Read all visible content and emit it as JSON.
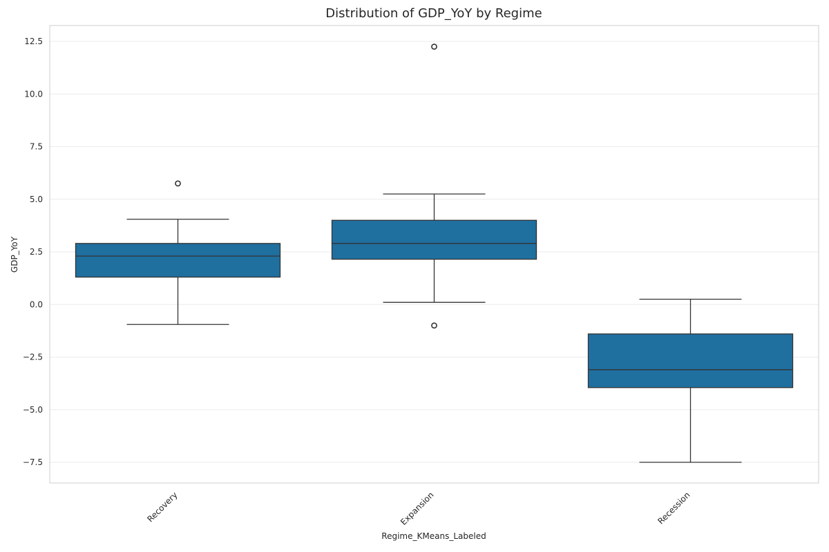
{
  "chart_data": {
    "type": "box",
    "title": "Distribution of GDP_YoY by Regime",
    "xlabel": "Regime_KMeans_Labeled",
    "ylabel": "GDP_YoY",
    "categories": [
      "Recovery",
      "Expansion",
      "Recession"
    ],
    "ylim": [
      -8.5,
      13.2
    ],
    "yticks": [
      -7.5,
      -5.0,
      -2.5,
      0.0,
      2.5,
      5.0,
      7.5,
      10.0,
      12.5
    ],
    "ytick_labels": [
      "−7.5",
      "−5.0",
      "−2.5",
      "0.0",
      "2.5",
      "5.0",
      "7.5",
      "10.0",
      "12.5"
    ],
    "grid": true,
    "box_color": "#1f6f9f",
    "edge_color": "#333333",
    "boxes": [
      {
        "category": "Recovery",
        "whisker_low": -0.95,
        "q1": 1.3,
        "median": 2.3,
        "q3": 2.9,
        "whisker_high": 4.05,
        "outliers": [
          5.75
        ]
      },
      {
        "category": "Expansion",
        "whisker_low": 0.1,
        "q1": 2.15,
        "median": 2.9,
        "q3": 4.0,
        "whisker_high": 5.25,
        "outliers": [
          12.25,
          -1.0
        ]
      },
      {
        "category": "Recession",
        "whisker_low": -7.5,
        "q1": -3.95,
        "median": -3.1,
        "q3": -1.4,
        "whisker_high": 0.25,
        "outliers": []
      }
    ]
  }
}
